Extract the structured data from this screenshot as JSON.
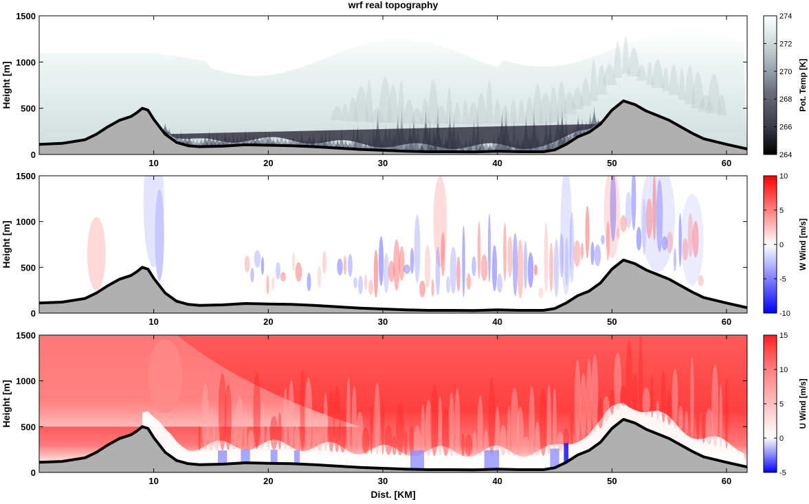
{
  "chart_data": {
    "title": "wrf real topography",
    "xlabel": "Dist. [KM]",
    "xlim": [
      0,
      61.8
    ],
    "xticks": [
      10,
      20,
      30,
      40,
      50,
      60
    ],
    "terrain": {
      "x": [
        0,
        2,
        4,
        5,
        6,
        7,
        8,
        8.5,
        9,
        9.5,
        10,
        11,
        12,
        13,
        14,
        16,
        18,
        20,
        22,
        24,
        26,
        28,
        30,
        32,
        34,
        36,
        38,
        40,
        42,
        44,
        45,
        46,
        47,
        48,
        49,
        50,
        51,
        52,
        53,
        54,
        55,
        56,
        57,
        58,
        60,
        61.8
      ],
      "h": [
        110,
        120,
        160,
        220,
        300,
        370,
        410,
        450,
        500,
        480,
        380,
        220,
        130,
        95,
        85,
        90,
        105,
        100,
        95,
        85,
        70,
        55,
        45,
        35,
        30,
        30,
        28,
        35,
        30,
        30,
        50,
        110,
        190,
        240,
        330,
        480,
        580,
        540,
        470,
        420,
        370,
        300,
        230,
        170,
        110,
        60
      ]
    },
    "panels": [
      {
        "type": "heatmap",
        "ylabel": "Height [m]",
        "ylim": [
          0,
          1500
        ],
        "yticks": [
          0,
          500,
          1000,
          1500
        ],
        "colorbar": {
          "label": "Pot. Temp [K]",
          "ticks": [
            264,
            266,
            268,
            270,
            272,
            274
          ],
          "colors": [
            "#000000",
            "#3a3a4a",
            "#6b6c7e",
            "#a3b0b8",
            "#d0dfdf",
            "#eef5f5",
            "#ffffff"
          ]
        }
      },
      {
        "type": "heatmap",
        "ylabel": "Height [m]",
        "ylim": [
          0,
          1500
        ],
        "yticks": [
          0,
          500,
          1000,
          1500
        ],
        "colorbar": {
          "label": "W Wind [m/s]",
          "ticks": [
            -10,
            -5,
            0,
            5,
            10
          ],
          "colors": [
            "#0000ff",
            "#8080ff",
            "#ffffff",
            "#ff8080",
            "#ff0000"
          ]
        }
      },
      {
        "type": "heatmap",
        "ylabel": "Height [m]",
        "ylim": [
          0,
          1500
        ],
        "yticks": [
          0,
          500,
          1000,
          1500
        ],
        "colorbar": {
          "label": "U Wind [m/s]",
          "ticks": [
            -5,
            0,
            5,
            10,
            15
          ],
          "colors": [
            "#0000ff",
            "#c8c8ff",
            "#ffffff",
            "#ff9f9f",
            "#ff2020"
          ]
        }
      }
    ]
  }
}
